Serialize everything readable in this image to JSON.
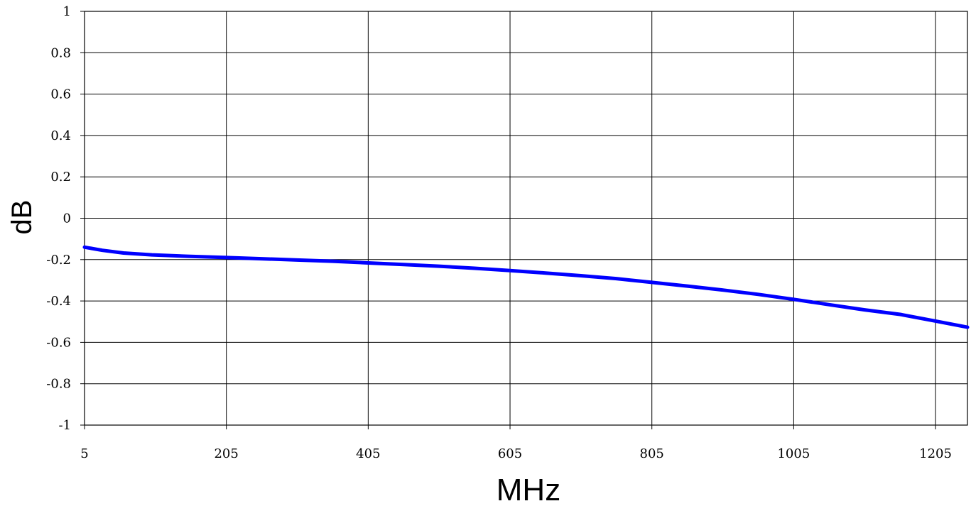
{
  "chart_data": {
    "type": "line",
    "title": "",
    "xlabel": "MHz",
    "ylabel": "dB",
    "xlim": [
      5,
      1250
    ],
    "ylim": [
      -1,
      1
    ],
    "xticks": [
      5,
      205,
      405,
      605,
      805,
      1005,
      1205
    ],
    "xtick_labels": [
      "5",
      "205",
      "405",
      "605",
      "805",
      "1005",
      "1205"
    ],
    "yticks": [
      1,
      0.8,
      0.6,
      0.4,
      0.2,
      0,
      -0.2,
      -0.4,
      -0.6,
      -0.8,
      -1
    ],
    "ytick_labels": [
      "1",
      "0.8",
      "0.6",
      "0.4",
      "0.2",
      "0",
      "-0.2",
      "-0.4",
      "-0.6",
      "-0.8",
      "-1"
    ],
    "grid": true,
    "series": [
      {
        "color": "#0000ff",
        "x": [
          5,
          30,
          60,
          100,
          150,
          205,
          255,
          305,
          355,
          405,
          455,
          505,
          555,
          605,
          655,
          705,
          755,
          805,
          855,
          905,
          955,
          1005,
          1055,
          1105,
          1155,
          1205,
          1250
        ],
        "values": [
          -0.14,
          -0.155,
          -0.168,
          -0.177,
          -0.184,
          -0.19,
          -0.196,
          -0.202,
          -0.208,
          -0.216,
          -0.224,
          -0.232,
          -0.242,
          -0.253,
          -0.265,
          -0.278,
          -0.292,
          -0.31,
          -0.328,
          -0.347,
          -0.368,
          -0.392,
          -0.418,
          -0.443,
          -0.465,
          -0.497,
          -0.527
        ]
      }
    ]
  }
}
